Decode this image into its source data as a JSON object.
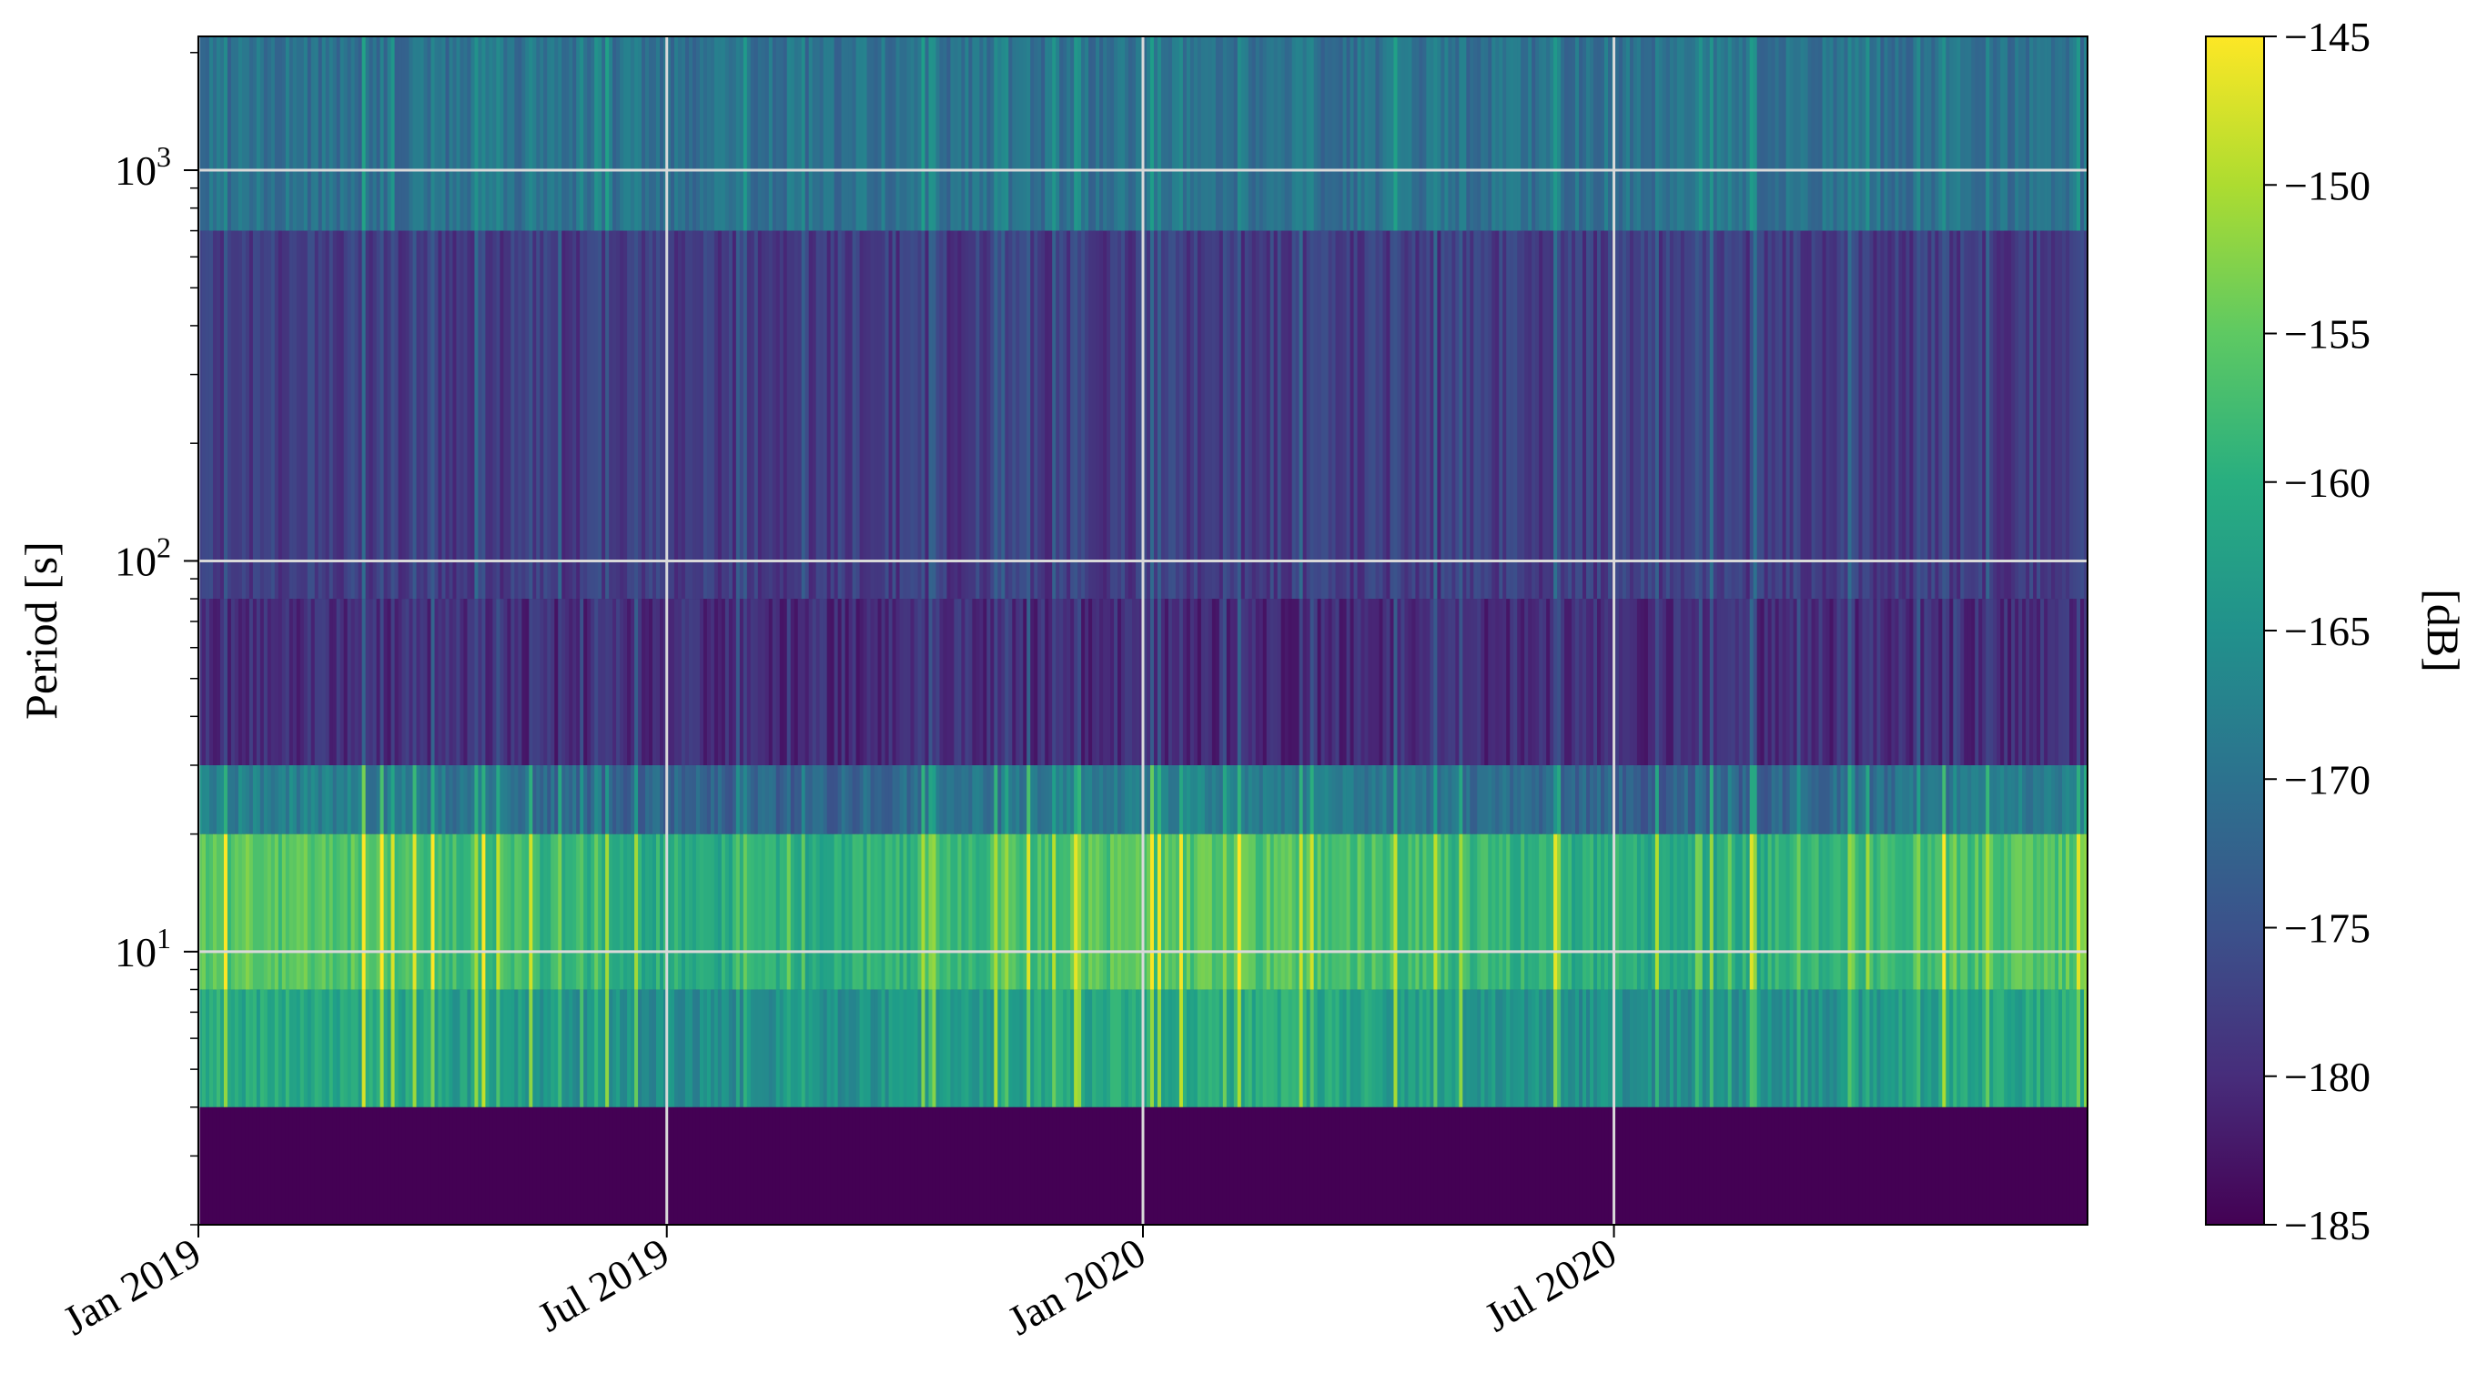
{
  "chart_data": {
    "type": "heatmap",
    "title": "",
    "xlabel": "",
    "ylabel": "Period [s]",
    "y_scale": "log",
    "ylim": [
      2,
      2200
    ],
    "xlim": [
      "2019-01-01",
      "2020-12-31"
    ],
    "x_ticks": [
      {
        "date": "2019-01-01",
        "label": "Jan 2019"
      },
      {
        "date": "2019-07-01",
        "label": "Jul 2019"
      },
      {
        "date": "2020-01-01",
        "label": "Jan 2020"
      },
      {
        "date": "2020-07-01",
        "label": "Jul 2020"
      }
    ],
    "y_ticks": [
      {
        "value": 10,
        "base": "10",
        "exponent": "1"
      },
      {
        "value": 100,
        "base": "10",
        "exponent": "2"
      },
      {
        "value": 1000,
        "base": "10",
        "exponent": "3"
      }
    ],
    "grid": true,
    "grid_color": "#d9d9d9",
    "colormap": "viridis",
    "colorbar": {
      "label": "[dB]",
      "range": [
        -185,
        -145
      ],
      "ticks": [
        "−145",
        "−150",
        "−155",
        "−160",
        "−165",
        "−170",
        "−175",
        "−180",
        "−185"
      ],
      "tick_values": [
        -145,
        -150,
        -155,
        -160,
        -165,
        -170,
        -175,
        -180,
        -185
      ]
    },
    "period_bands": [
      {
        "period_range": [
          2,
          4
        ],
        "level_db": -185
      },
      {
        "period_range": [
          4,
          8
        ],
        "level_db": -163
      },
      {
        "period_range": [
          8,
          20
        ],
        "level_db": -158
      },
      {
        "period_range": [
          20,
          30
        ],
        "level_db": -170
      },
      {
        "period_range": [
          30,
          80
        ],
        "level_db": -180
      },
      {
        "period_range": [
          80,
          700
        ],
        "level_db": -178
      },
      {
        "period_range": [
          700,
          2200
        ],
        "level_db": -170
      }
    ]
  }
}
